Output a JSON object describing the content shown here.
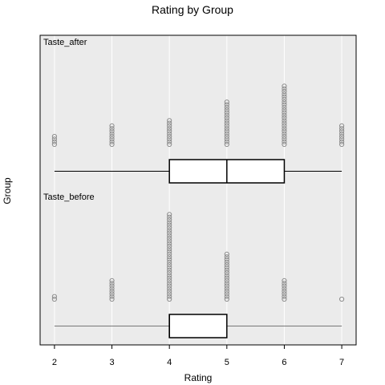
{
  "chart_data": {
    "type": "dotplot_boxplot",
    "title": "Rating by Group",
    "xlabel": "Rating",
    "ylabel": "Group",
    "xlim": [
      1.75,
      7.25
    ],
    "xticks": [
      2,
      3,
      4,
      5,
      6,
      7
    ],
    "grid": true,
    "groups": [
      {
        "name": "Taste_after",
        "dot_counts": [
          {
            "x": 2,
            "n": 4
          },
          {
            "x": 3,
            "n": 8
          },
          {
            "x": 4,
            "n": 10
          },
          {
            "x": 5,
            "n": 17
          },
          {
            "x": 6,
            "n": 23
          },
          {
            "x": 7,
            "n": 8
          }
        ],
        "box": {
          "min": 2,
          "q1": 4,
          "median": 5,
          "q3": 6,
          "max": 7
        }
      },
      {
        "name": "Taste_before",
        "dot_counts": [
          {
            "x": 2,
            "n": 2
          },
          {
            "x": 3,
            "n": 8
          },
          {
            "x": 4,
            "n": 33
          },
          {
            "x": 5,
            "n": 18
          },
          {
            "x": 6,
            "n": 8
          },
          {
            "x": 7,
            "n": 1
          }
        ],
        "box": {
          "min": 2,
          "q1": 4,
          "median": 4,
          "q3": 5,
          "max": 7
        }
      }
    ]
  }
}
